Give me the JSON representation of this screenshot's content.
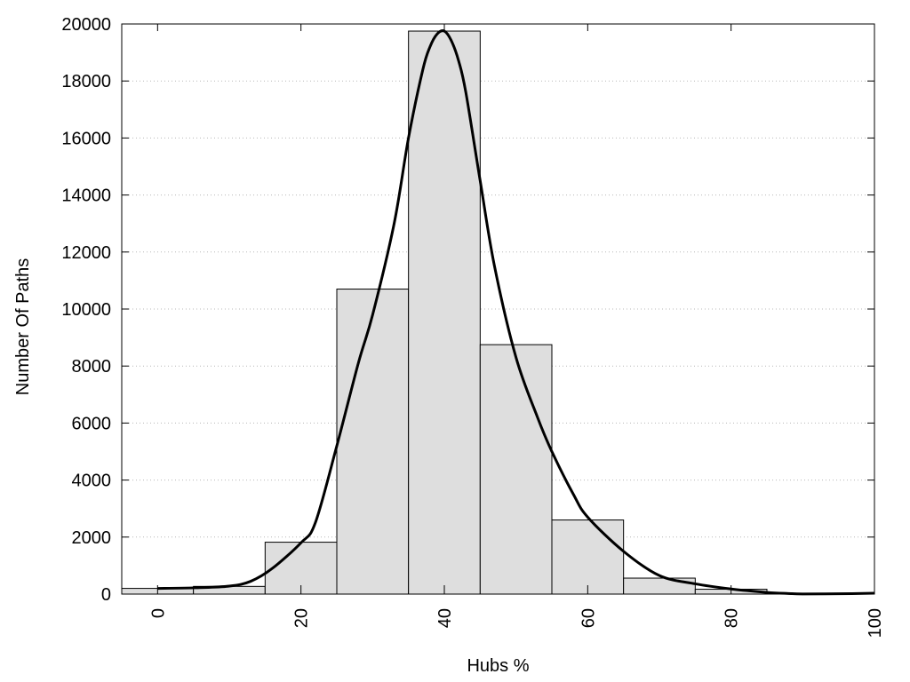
{
  "chart_data": {
    "type": "bar",
    "xlabel": "Hubs %",
    "ylabel": "Number Of Paths",
    "xlim": [
      -5,
      100
    ],
    "ylim": [
      0,
      20000
    ],
    "x_ticks": [
      "0",
      "20",
      "40",
      "60",
      "80",
      "100"
    ],
    "y_ticks": [
      "0",
      "2000",
      "4000",
      "6000",
      "8000",
      "10000",
      "12000",
      "14000",
      "16000",
      "18000",
      "20000"
    ],
    "grid": "horizontal dotted",
    "legend": "none",
    "bar_color": "#dedede",
    "line_color": "#000000",
    "histogram": [
      {
        "x0": -5,
        "x1": 5,
        "value": 200
      },
      {
        "x0": 5,
        "x1": 15,
        "value": 270
      },
      {
        "x0": 15,
        "x1": 25,
        "value": 1820
      },
      {
        "x0": 25,
        "x1": 35,
        "value": 10700
      },
      {
        "x0": 35,
        "x1": 45,
        "value": 19750
      },
      {
        "x0": 45,
        "x1": 55,
        "value": 8750
      },
      {
        "x0": 55,
        "x1": 65,
        "value": 2600
      },
      {
        "x0": 65,
        "x1": 75,
        "value": 560
      },
      {
        "x0": 75,
        "x1": 85,
        "value": 170
      },
      {
        "x0": 85,
        "x1": 95,
        "value": 20
      },
      {
        "x0": 95,
        "x1": 100,
        "value": 15
      }
    ],
    "curve": {
      "x": [
        0,
        5,
        10,
        13,
        16,
        20,
        22,
        25,
        28,
        30,
        33,
        35,
        37,
        38,
        39,
        40,
        41,
        42,
        43,
        45,
        47,
        50,
        53,
        55,
        58,
        60,
        65,
        70,
        75,
        80,
        85,
        88,
        90,
        95,
        100
      ],
      "y": [
        200,
        220,
        280,
        450,
        900,
        1800,
        2500,
        5200,
        8100,
        9800,
        13000,
        16000,
        18400,
        19200,
        19650,
        19750,
        19400,
        18700,
        17600,
        14500,
        11500,
        8300,
        6200,
        5000,
        3500,
        2700,
        1500,
        650,
        360,
        180,
        60,
        20,
        5,
        10,
        30
      ]
    }
  }
}
